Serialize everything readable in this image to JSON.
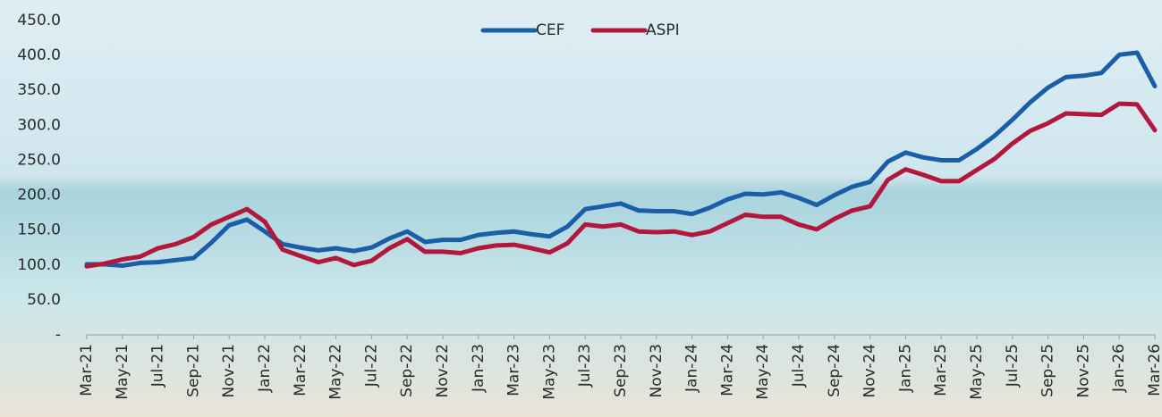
{
  "chart_data": {
    "type": "line",
    "categories": [
      "Mar-21",
      null,
      "May-21",
      null,
      "Jul-21",
      null,
      "Sep-21",
      null,
      "Nov-21",
      null,
      "Jan-22",
      null,
      "Mar-22",
      null,
      "May-22",
      null,
      "Jul-22",
      null,
      "Sep-22",
      null,
      "Nov-22",
      null,
      "Jan-23",
      null,
      "Mar-23",
      null,
      "May-23",
      null,
      "Jul-23",
      null,
      "Sep-23",
      null,
      "Nov-23",
      null,
      "Jan-24",
      null,
      "Mar-24",
      null,
      "May-24",
      null,
      "Jul-24",
      null,
      "Sep-24",
      null,
      "Nov-24",
      null,
      "Jan-25",
      null,
      "Mar-25",
      null,
      "May-25",
      null,
      "Jul-25",
      null,
      "Sep-25",
      null,
      "Nov-25",
      null,
      "Jan-26",
      null,
      "Mar-26"
    ],
    "series": [
      {
        "name": "CEF",
        "color": "#1b5ea8",
        "values": [
          101,
          101,
          99,
          103,
          104,
          107,
          110,
          132,
          157,
          165,
          148,
          130,
          125,
          121,
          124,
          120,
          125,
          138,
          148,
          133,
          136,
          136,
          143,
          146,
          148,
          144,
          141,
          155,
          180,
          184,
          188,
          178,
          177,
          177,
          173,
          182,
          194,
          202,
          201,
          204,
          196,
          186,
          200,
          212,
          219,
          248,
          261,
          254,
          250,
          250,
          266,
          285,
          308,
          333,
          354,
          369,
          371,
          375,
          401,
          404,
          356
        ]
      },
      {
        "name": "ASPI",
        "color": "#b3173c",
        "values": [
          98,
          102,
          108,
          112,
          124,
          130,
          140,
          158,
          169,
          180,
          162,
          122,
          113,
          104,
          110,
          100,
          106,
          124,
          137,
          119,
          119,
          117,
          124,
          128,
          129,
          124,
          118,
          131,
          158,
          155,
          158,
          148,
          147,
          148,
          143,
          148,
          160,
          172,
          169,
          169,
          158,
          151,
          166,
          178,
          184,
          222,
          237,
          229,
          220,
          220,
          236,
          252,
          274,
          292,
          303,
          317,
          316,
          315,
          331,
          330,
          293
        ]
      }
    ],
    "ylim": [
      0,
      450
    ],
    "yticks": [
      {
        "value": 0,
        "label": "-"
      },
      {
        "value": 50,
        "label": "50.0"
      },
      {
        "value": 100,
        "label": "100.0"
      },
      {
        "value": 150,
        "label": "150.0"
      },
      {
        "value": 200,
        "label": "200.0"
      },
      {
        "value": 250,
        "label": "250.0"
      },
      {
        "value": 300,
        "label": "300.0"
      },
      {
        "value": 350,
        "label": "350.0"
      },
      {
        "value": 400,
        "label": "400.0"
      },
      {
        "value": 450,
        "label": "450.0"
      }
    ],
    "legend": "top"
  }
}
